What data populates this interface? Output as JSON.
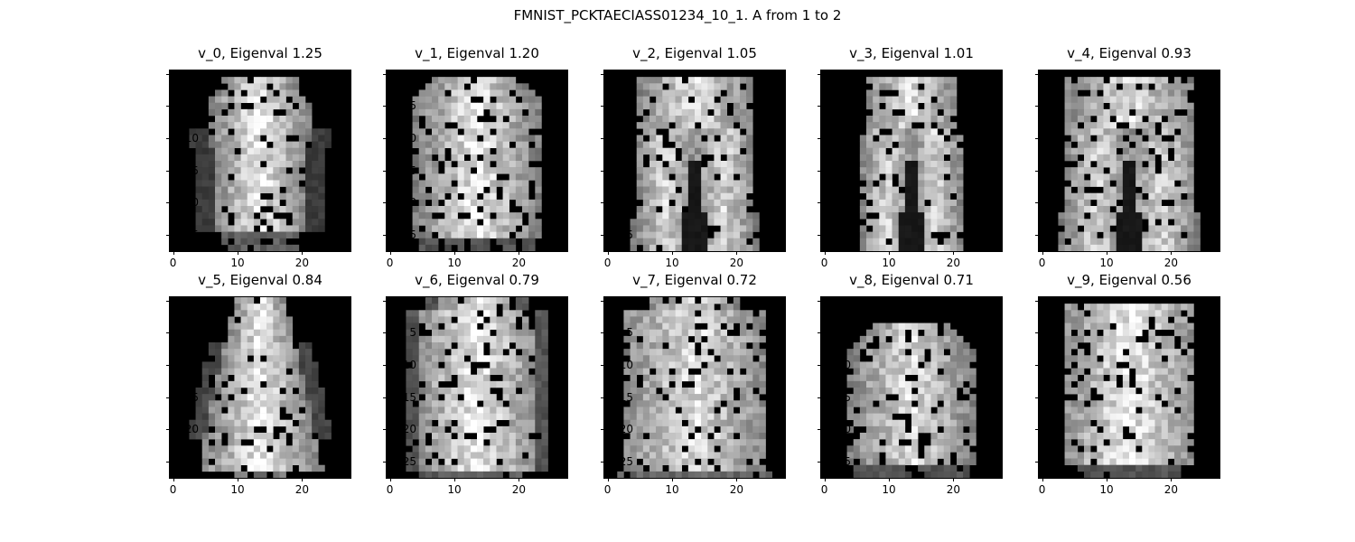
{
  "figure": {
    "title": "FMNIST_PCKTAECIASS01234_10_1. A from 1 to 2"
  },
  "chart_data": {
    "type": "heatmap",
    "grid_size": [
      28,
      28
    ],
    "colormap": "gray",
    "x_ticks": [
      "0",
      "10",
      "20"
    ],
    "y_ticks": [
      "0",
      "5",
      "10",
      "15",
      "20",
      "25"
    ],
    "panels": [
      {
        "title": "v_0, Eigenval 1.25",
        "eigenval": 1.25,
        "shape": "top"
      },
      {
        "title": "v_1, Eigenval 1.20",
        "eigenval": 1.2,
        "shape": "top-wide"
      },
      {
        "title": "v_2, Eigenval 1.05",
        "eigenval": 1.05,
        "shape": "trouser"
      },
      {
        "title": "v_3, Eigenval 1.01",
        "eigenval": 1.01,
        "shape": "trouser-narrow"
      },
      {
        "title": "v_4, Eigenval 0.93",
        "eigenval": 0.93,
        "shape": "trouser-wide"
      },
      {
        "title": "v_5, Eigenval 0.84",
        "eigenval": 0.84,
        "shape": "dress"
      },
      {
        "title": "v_6, Eigenval 0.79",
        "eigenval": 0.79,
        "shape": "pullover"
      },
      {
        "title": "v_7, Eigenval 0.72",
        "eigenval": 0.72,
        "shape": "pullover-wide"
      },
      {
        "title": "v_8, Eigenval 0.71",
        "eigenval": 0.71,
        "shape": "shirt-low"
      },
      {
        "title": "v_9, Eigenval 0.56",
        "eigenval": 0.56,
        "shape": "coat"
      }
    ]
  }
}
